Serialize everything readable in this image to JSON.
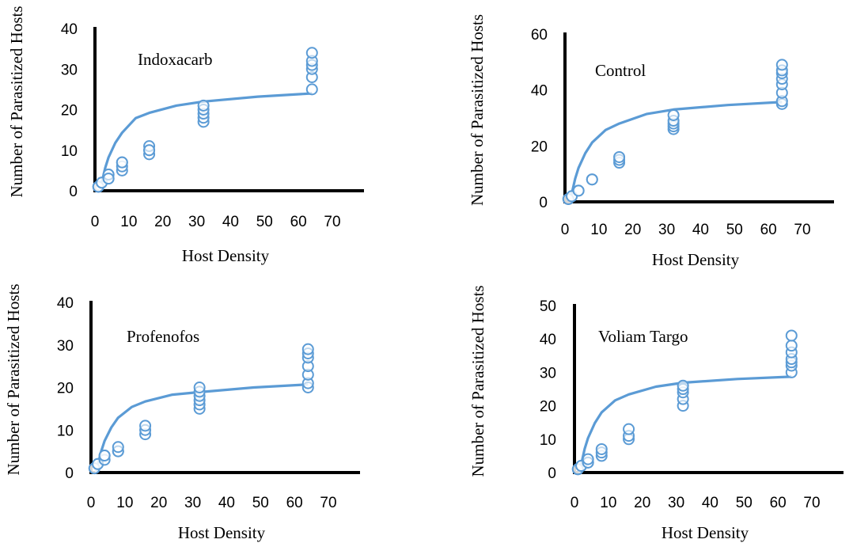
{
  "colors": {
    "series": "#5b9bd5",
    "axis": "#000000",
    "marker_fill": "#ffffff"
  },
  "chart_data": [
    {
      "type": "scatter",
      "title": "Indoxacarb",
      "xlabel": "Host Density",
      "ylabel": "Number of Parasitized Hosts",
      "xlim": [
        0,
        70
      ],
      "ylim": [
        0,
        40
      ],
      "xticks": [
        "0",
        "10",
        "20",
        "30",
        "40",
        "50",
        "60",
        "70"
      ],
      "yticks": [
        "0",
        "10",
        "20",
        "30",
        "40"
      ],
      "grid": false,
      "legend": "none",
      "points": {
        "x": [
          1,
          1,
          1,
          2,
          2,
          4,
          4,
          4,
          4,
          8,
          8,
          8,
          8,
          16,
          16,
          16,
          16,
          32,
          32,
          32,
          32,
          32,
          64,
          64,
          64,
          64,
          64,
          64
        ],
        "y": [
          1,
          1,
          1,
          2,
          2,
          3,
          4,
          4,
          3,
          5,
          6,
          7,
          7,
          9,
          10,
          11,
          10,
          17,
          18,
          19,
          20,
          21,
          25,
          28,
          30,
          31,
          32,
          34
        ]
      },
      "fit": {
        "type": "logarithmic",
        "x": [
          1.5,
          2,
          3,
          4,
          6,
          8,
          12,
          16,
          24,
          32,
          48,
          64
        ],
        "y": [
          0,
          2.0,
          5.6,
          8.2,
          11.8,
          14.3,
          17.9,
          19.2,
          21.0,
          22.0,
          23.2,
          24.0
        ]
      }
    },
    {
      "type": "scatter",
      "title": "Control",
      "xlabel": "Host Density",
      "ylabel": "Number of Parasitized Hosts",
      "xlim": [
        0,
        70
      ],
      "ylim": [
        0,
        60
      ],
      "xticks": [
        "0",
        "10",
        "20",
        "30",
        "40",
        "50",
        "60",
        "70"
      ],
      "yticks": [
        "0",
        "20",
        "40",
        "60"
      ],
      "grid": false,
      "legend": "none",
      "points": {
        "x": [
          1,
          1,
          2,
          2,
          4,
          4,
          8,
          8,
          16,
          16,
          16,
          32,
          32,
          32,
          32,
          32,
          64,
          64,
          64,
          64,
          64,
          64,
          64,
          64
        ],
        "y": [
          1,
          1,
          2,
          2,
          4,
          4,
          8,
          8,
          14,
          15,
          16,
          26,
          27,
          28,
          29,
          31,
          35,
          36,
          39,
          42,
          44,
          46,
          47,
          49
        ]
      },
      "fit": {
        "type": "logarithmic",
        "x": [
          1.5,
          2,
          3,
          4,
          6,
          8,
          12,
          16,
          24,
          32,
          48,
          64
        ],
        "y": [
          0,
          3.0,
          8.3,
          12.1,
          17.4,
          21.2,
          25.7,
          28.0,
          31.4,
          33.0,
          34.6,
          35.7
        ]
      }
    },
    {
      "type": "scatter",
      "title": "Profenofos",
      "xlabel": "Host Density",
      "ylabel": "Number of Parasitized Hosts",
      "xlim": [
        0,
        70
      ],
      "ylim": [
        0,
        40
      ],
      "xticks": [
        "0",
        "10",
        "20",
        "30",
        "40",
        "50",
        "60",
        "70"
      ],
      "yticks": [
        "0",
        "10",
        "20",
        "30",
        "40"
      ],
      "grid": false,
      "legend": "none",
      "points": {
        "x": [
          1,
          1,
          2,
          2,
          4,
          4,
          4,
          8,
          8,
          8,
          16,
          16,
          16,
          32,
          32,
          32,
          32,
          32,
          32,
          64,
          64,
          64,
          64,
          64,
          64,
          64
        ],
        "y": [
          1,
          1,
          2,
          2,
          3,
          4,
          4,
          5,
          5,
          6,
          9,
          10,
          11,
          15,
          16,
          17,
          18,
          19,
          20,
          20,
          21,
          23,
          25,
          27,
          28,
          29
        ]
      },
      "fit": {
        "type": "logarithmic",
        "x": [
          1.5,
          2,
          3,
          4,
          6,
          8,
          12,
          16,
          24,
          32,
          48,
          64
        ],
        "y": [
          0,
          1.8,
          5.0,
          7.4,
          10.6,
          12.9,
          15.4,
          16.7,
          18.3,
          18.9,
          20.0,
          20.7
        ]
      }
    },
    {
      "type": "scatter",
      "title": "Voliam Targo",
      "xlabel": "Host Density",
      "ylabel": "Number of Parasitized Hosts",
      "xlim": [
        0,
        70
      ],
      "ylim": [
        0,
        50
      ],
      "xticks": [
        "0",
        "10",
        "20",
        "30",
        "40",
        "50",
        "60",
        "70"
      ],
      "yticks": [
        "0",
        "10",
        "20",
        "30",
        "40",
        "50"
      ],
      "grid": false,
      "legend": "none",
      "points": {
        "x": [
          1,
          1,
          2,
          2,
          4,
          4,
          4,
          8,
          8,
          8,
          16,
          16,
          16,
          32,
          32,
          32,
          32,
          32,
          64,
          64,
          64,
          64,
          64,
          64,
          64
        ],
        "y": [
          1,
          1,
          2,
          2,
          3,
          3,
          4,
          5,
          6,
          7,
          10,
          11,
          13,
          20,
          22,
          24,
          25,
          26,
          30,
          32,
          33,
          34,
          36,
          38,
          41
        ]
      },
      "fit": {
        "type": "logarithmic",
        "x": [
          1.5,
          2,
          3,
          4,
          6,
          8,
          12,
          16,
          24,
          32,
          48,
          64
        ],
        "y": [
          0,
          2.5,
          7.1,
          10.3,
          14.8,
          18.0,
          21.6,
          23.4,
          25.7,
          26.9,
          28.0,
          28.7
        ]
      }
    }
  ]
}
